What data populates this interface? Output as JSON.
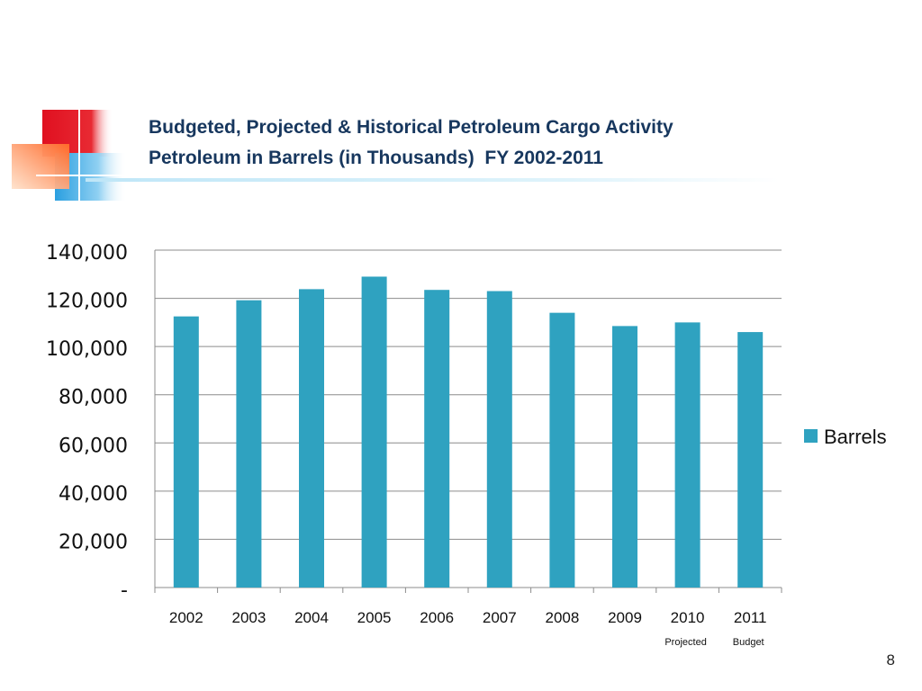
{
  "slide": {
    "title_line1": "Budgeted, Projected & Historical Petroleum Cargo Activity",
    "title_line2": "Petroleum in Barrels (in Thousands)  FY 2002-2011",
    "page_number": "8"
  },
  "chart_data": {
    "type": "bar",
    "categories": [
      "2002",
      "2003",
      "2004",
      "2005",
      "2006",
      "2007",
      "2008",
      "2009",
      "2010",
      "2011"
    ],
    "series": [
      {
        "name": "Barrels",
        "color": "#2fa2c0",
        "values": [
          112500,
          119200,
          123800,
          129000,
          123500,
          123000,
          114000,
          108500,
          110000,
          106000
        ]
      }
    ],
    "ylim": [
      0,
      140000
    ],
    "y_ticks": [
      0,
      20000,
      40000,
      60000,
      80000,
      100000,
      120000,
      140000
    ],
    "y_tick_labels": [
      "-",
      "20,000",
      "40,000",
      "60,000",
      "80,000",
      "100,000",
      "120,000",
      "140,000"
    ],
    "grid": true,
    "legend_position": "right",
    "annotations": [
      {
        "category": "2010",
        "text": "Projected"
      },
      {
        "category": "2011",
        "text": "Budget"
      }
    ],
    "xlabel": "",
    "ylabel": ""
  }
}
